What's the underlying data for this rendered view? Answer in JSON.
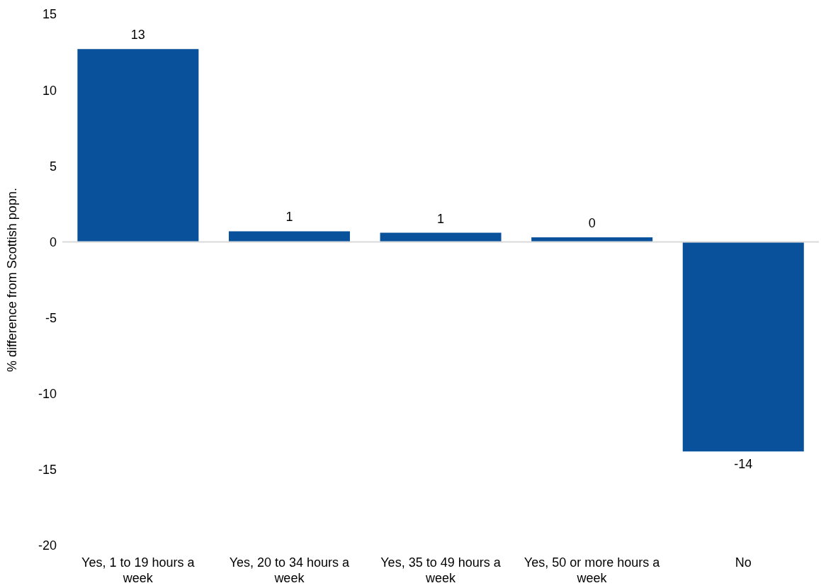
{
  "chart_data": {
    "type": "bar",
    "ylabel": "% difference from Scottish popn.",
    "categories": [
      "Yes, 1 to 19 hours a week",
      "Yes, 20 to 34 hours a week",
      "Yes, 35 to 49 hours a week",
      "Yes, 50 or more hours a week",
      "No"
    ],
    "values": [
      12.7,
      0.7,
      0.6,
      0.3,
      -13.8
    ],
    "value_labels": [
      "13",
      "1",
      "1",
      "0",
      "-14"
    ],
    "color": "#0a519c",
    "ylim": [
      -20,
      15
    ],
    "yticks": [
      -20,
      -15,
      -10,
      -5,
      0,
      5,
      10,
      15
    ]
  }
}
